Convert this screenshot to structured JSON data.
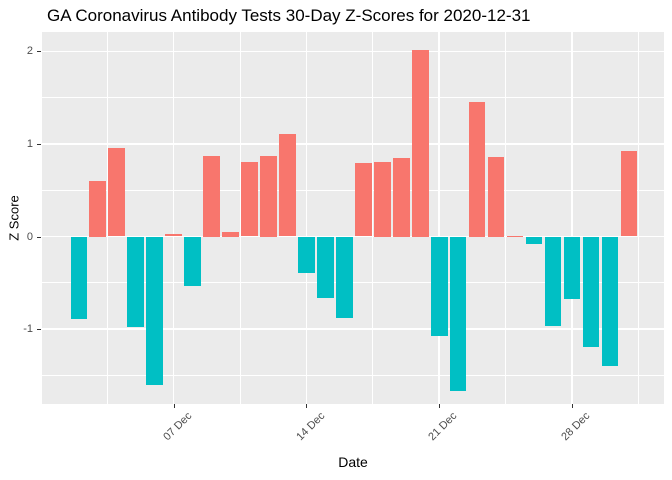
{
  "chart_data": {
    "type": "bar",
    "title": "GA Coronavirus Antibody Tests 30-Day Z-Scores for 2020-12-31",
    "xlabel": "Date",
    "ylabel": "Z Score",
    "x": [
      "2020-12-02",
      "2020-12-03",
      "2020-12-04",
      "2020-12-05",
      "2020-12-06",
      "2020-12-07",
      "2020-12-08",
      "2020-12-09",
      "2020-12-10",
      "2020-12-11",
      "2020-12-12",
      "2020-12-13",
      "2020-12-14",
      "2020-12-15",
      "2020-12-16",
      "2020-12-17",
      "2020-12-18",
      "2020-12-19",
      "2020-12-20",
      "2020-12-21",
      "2020-12-22",
      "2020-12-23",
      "2020-12-24",
      "2020-12-25",
      "2020-12-26",
      "2020-12-27",
      "2020-12-28",
      "2020-12-29",
      "2020-12-30",
      "2020-12-31"
    ],
    "values": [
      -0.89,
      0.6,
      0.96,
      -0.98,
      -1.6,
      0.03,
      -0.53,
      0.87,
      0.05,
      0.8,
      0.87,
      1.11,
      -0.39,
      -0.66,
      -0.88,
      0.79,
      0.81,
      0.85,
      2.02,
      -1.08,
      -1.67,
      1.45,
      0.86,
      0.01,
      -0.08,
      -0.97,
      -0.68,
      -1.19,
      -1.4,
      0.92
    ],
    "bar_width_days": 0.875,
    "x_ticks": [
      {
        "day": 7,
        "label": "07 Dec"
      },
      {
        "day": 14,
        "label": "14 Dec"
      },
      {
        "day": 21,
        "label": "21 Dec"
      },
      {
        "day": 28,
        "label": "28 Dec"
      }
    ],
    "x_minor_days": [
      3.5,
      10.5,
      17.5,
      24.5,
      31.5
    ],
    "y_ticks": [
      {
        "v": 2,
        "label": "2"
      },
      {
        "v": 1,
        "label": "1"
      },
      {
        "v": 0,
        "label": "0"
      },
      {
        "v": -1,
        "label": "-1"
      }
    ],
    "y_minor": [
      1.5,
      0.5,
      -0.5,
      -1.5
    ],
    "ylim": [
      -1.81,
      2.21
    ],
    "xlim_days": [
      0.06,
      32.85
    ],
    "grid": true,
    "legend": "none",
    "colors": {
      "positive": "#F8766D",
      "negative": "#00BFC4",
      "panel_bg": "#EBEBEB",
      "grid": "#FFFFFF",
      "tick_mark": "#333333",
      "axis_text": "#4D4D4D",
      "title_text": "#000000"
    }
  }
}
